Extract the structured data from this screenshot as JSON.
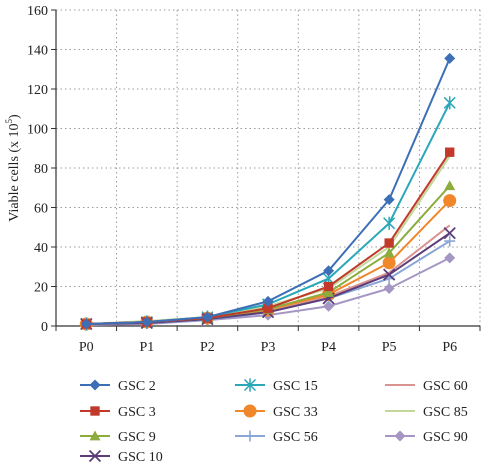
{
  "chart_data": {
    "type": "line",
    "title": "",
    "xlabel": "",
    "ylabel": "Viable cells (x 10",
    "ylabel_exponent": "5",
    "ylabel_close": ")",
    "categories": [
      "P0",
      "P1",
      "P2",
      "P3",
      "P4",
      "P5",
      "P6"
    ],
    "ylim": [
      0,
      160
    ],
    "yticks": [
      0,
      20,
      40,
      60,
      80,
      100,
      120,
      140,
      160
    ],
    "grid": true,
    "legend_position": "bottom",
    "series": [
      {
        "name": "GSC 2",
        "color": "#3d6fb6",
        "marker": "diamond",
        "values": [
          1,
          2,
          4.5,
          12.5,
          28,
          64,
          135.5
        ]
      },
      {
        "name": "GSC 3",
        "color": "#c0392b",
        "marker": "square",
        "values": [
          1,
          2,
          4,
          9,
          20,
          42,
          88
        ]
      },
      {
        "name": "GSC 9",
        "color": "#8dac3e",
        "marker": "triangle",
        "values": [
          1,
          2,
          4,
          8.5,
          17,
          37,
          71
        ]
      },
      {
        "name": "GSC 10",
        "color": "#5c3d7a",
        "marker": "x",
        "values": [
          1,
          1.5,
          3.5,
          7,
          14,
          26,
          47
        ]
      },
      {
        "name": "GSC 15",
        "color": "#2aa7b8",
        "marker": "star",
        "values": [
          1,
          2,
          4.5,
          11,
          24,
          52,
          113
        ]
      },
      {
        "name": "GSC 33",
        "color": "#f0872b",
        "marker": "circle",
        "values": [
          1,
          2,
          4,
          8,
          16,
          32,
          63.5
        ]
      },
      {
        "name": "GSC 56",
        "color": "#8aa6d6",
        "marker": "plus",
        "values": [
          1,
          1.5,
          3,
          7,
          14,
          24,
          43
        ]
      },
      {
        "name": "GSC 60",
        "color": "#d99391",
        "marker": "none",
        "values": [
          1,
          2,
          3.5,
          7,
          15,
          27,
          51
        ]
      },
      {
        "name": "GSC 85",
        "color": "#c4d79b",
        "marker": "none",
        "values": [
          1,
          2.5,
          4.5,
          10,
          19,
          40,
          86
        ]
      },
      {
        "name": "GSC 90",
        "color": "#a596c4",
        "marker": "diamond",
        "values": [
          0.5,
          1,
          3,
          5.5,
          10,
          19,
          34.5
        ]
      }
    ]
  }
}
